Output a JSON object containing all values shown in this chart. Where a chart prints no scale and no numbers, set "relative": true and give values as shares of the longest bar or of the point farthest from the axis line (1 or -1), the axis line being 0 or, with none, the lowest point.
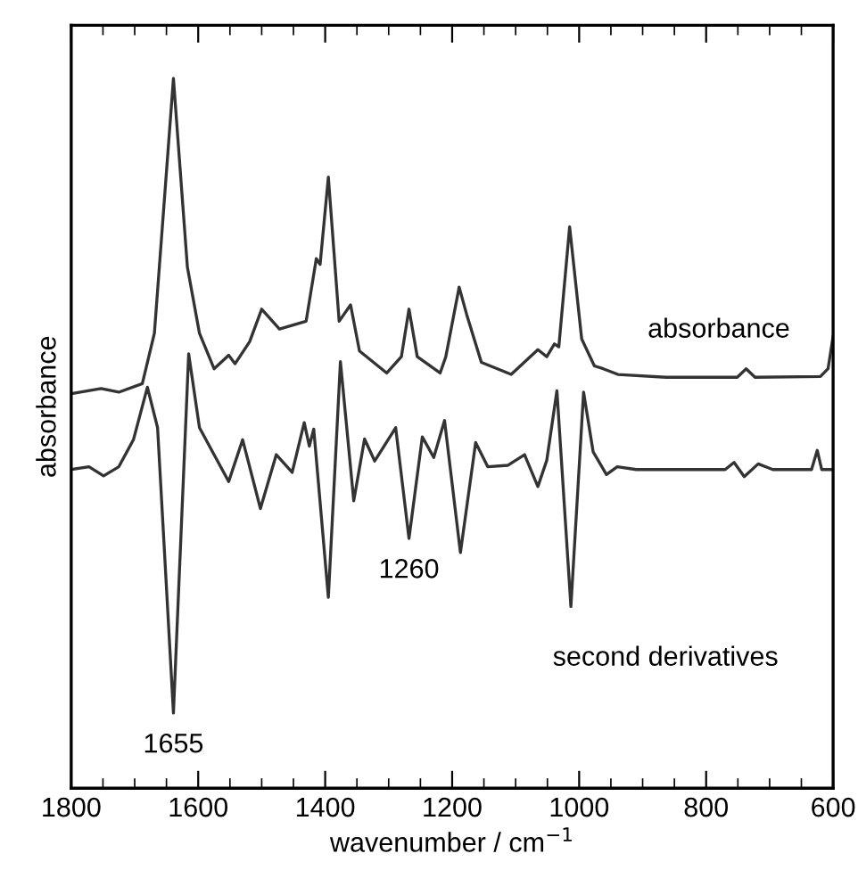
{
  "chart_data": {
    "type": "line",
    "relative": true,
    "xlabel": "wavenumber / cm$^{−1}$",
    "ylabel": "absorbance",
    "xlim": [
      1800,
      600
    ],
    "xticks": [
      1800,
      {
        "value": 1750,
        "label": null
      },
      {
        "value": 1700,
        "label": null
      },
      {
        "value": 1650,
        "label": null
      },
      1600,
      {
        "value": 1550,
        "label": null
      },
      {
        "value": 1500,
        "label": null
      },
      {
        "value": 1450,
        "label": null
      },
      1400,
      {
        "value": 1350,
        "label": null
      },
      {
        "value": 1300,
        "label": null
      },
      {
        "value": 1250,
        "label": null
      },
      1200,
      {
        "value": 1150,
        "label": null
      },
      {
        "value": 1100,
        "label": null
      },
      {
        "value": 1050,
        "label": null
      },
      1000,
      {
        "value": 950,
        "label": null
      },
      {
        "value": 900,
        "label": null
      },
      {
        "value": 850,
        "label": null
      },
      800,
      {
        "value": 750,
        "label": null
      },
      {
        "value": 700,
        "label": null
      },
      {
        "value": 650,
        "label": null
      },
      600
    ],
    "tick_labels": "x",
    "grid": false,
    "legend": false,
    "marker": "none",
    "line_style": "solid",
    "series": [
      {
        "name": "absorbance",
        "color": "#333333",
        "x": [
          1800,
          1753,
          1725,
          1688,
          1669,
          1639,
          1617,
          1598,
          1575,
          1552,
          1542,
          1519,
          1500,
          1472,
          1430,
          1414,
          1408,
          1395,
          1378,
          1360,
          1346,
          1303,
          1280,
          1268,
          1255,
          1219,
          1210,
          1189,
          1177,
          1154,
          1107,
          1065,
          1051,
          1039,
          1032,
          1015,
          996,
          976,
          962,
          939,
          863,
          751,
          737,
          723,
          620,
          608,
          600
        ],
        "values": [
          0.556,
          0.563,
          0.558,
          0.57,
          0.641,
          1.0,
          0.734,
          0.641,
          0.591,
          0.61,
          0.598,
          0.629,
          0.675,
          0.647,
          0.658,
          0.746,
          0.738,
          0.861,
          0.658,
          0.681,
          0.616,
          0.585,
          0.608,
          0.675,
          0.608,
          0.585,
          0.608,
          0.706,
          0.667,
          0.6,
          0.583,
          0.618,
          0.608,
          0.626,
          0.622,
          0.791,
          0.633,
          0.595,
          0.591,
          0.583,
          0.579,
          0.579,
          0.591,
          0.579,
          0.58,
          0.591,
          0.637
        ]
      },
      {
        "name": "second derivatives",
        "color": "#333333",
        "x": [
          1800,
          1772,
          1749,
          1725,
          1702,
          1680,
          1664,
          1639,
          1615,
          1598,
          1575,
          1552,
          1530,
          1502,
          1477,
          1452,
          1433,
          1425,
          1418,
          1395,
          1376,
          1355,
          1338,
          1322,
          1289,
          1268,
          1247,
          1229,
          1212,
          1187,
          1163,
          1144,
          1112,
          1086,
          1065,
          1051,
          1035,
          1013,
          993,
          978,
          957,
          940,
          910,
          770,
          756,
          740,
          718,
          695,
          634,
          625,
          618,
          600
        ],
        "values": [
          0.449,
          0.453,
          0.44,
          0.453,
          0.491,
          0.565,
          0.508,
          0.106,
          0.612,
          0.508,
          0.47,
          0.432,
          0.491,
          0.394,
          0.47,
          0.445,
          0.515,
          0.482,
          0.506,
          0.269,
          0.601,
          0.405,
          0.492,
          0.461,
          0.508,
          0.352,
          0.495,
          0.466,
          0.518,
          0.332,
          0.487,
          0.453,
          0.455,
          0.47,
          0.425,
          0.462,
          0.56,
          0.256,
          0.558,
          0.474,
          0.442,
          0.453,
          0.449,
          0.449,
          0.459,
          0.439,
          0.457,
          0.449,
          0.449,
          0.476,
          0.449,
          0.449
        ]
      }
    ],
    "annotations": [
      {
        "text": "1655",
        "x": 1639,
        "y": 0.106
      },
      {
        "text": "1260",
        "x": 1268,
        "y": 0.352
      }
    ]
  }
}
